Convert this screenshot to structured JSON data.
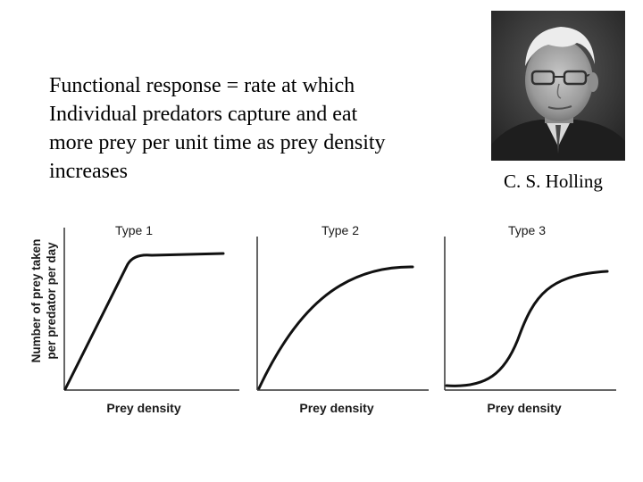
{
  "definition": {
    "lines": [
      "Functional response = rate at which",
      "Individual predators capture and eat",
      "more prey per unit time as prey density",
      "increases"
    ]
  },
  "portrait": {
    "caption": "C. S. Holling"
  },
  "graphs": {
    "ylabel_line1": "Number of prey taken",
    "ylabel_line2": "per predator per day",
    "xlabel": "Prey density",
    "panels": [
      {
        "title": "Type 1",
        "shape": "linear-plateau"
      },
      {
        "title": "Type 2",
        "shape": "decelerating"
      },
      {
        "title": "Type 3",
        "shape": "sigmoid"
      }
    ]
  }
}
